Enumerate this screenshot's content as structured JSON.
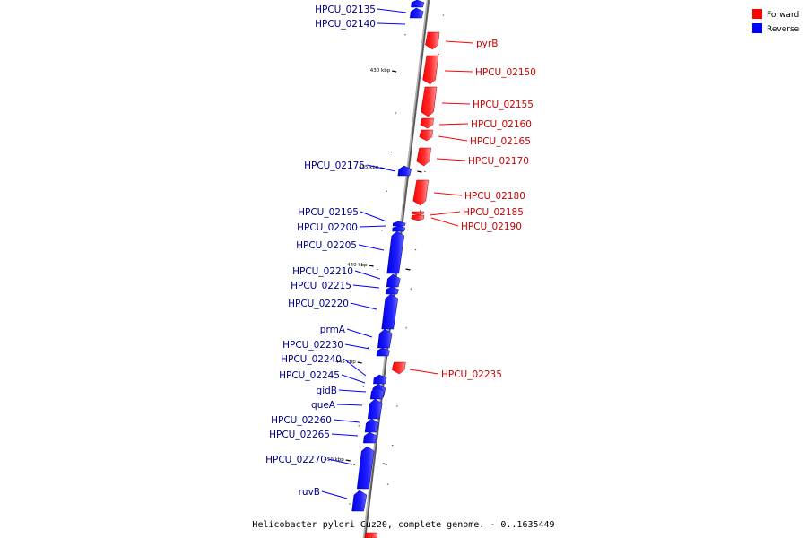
{
  "caption": "Helicobacter pylori Cuz20, complete genome. - 0..1635449",
  "legend": [
    {
      "label": "Forward",
      "color": "#ff0000"
    },
    {
      "label": "Reverse",
      "color": "#0000ff"
    }
  ],
  "colors": {
    "forward": "#ff0000",
    "reverse": "#0000ff",
    "backbone": "#8c8c8c"
  },
  "scale_ticks": [
    "430 kbp",
    "435 kbp",
    "440 kbp",
    "445 kbp",
    "450 kbp"
  ],
  "genes": [
    {
      "name": "HPCU_02135",
      "strand": "reverse"
    },
    {
      "name": "HPCU_02140",
      "strand": "reverse"
    },
    {
      "name": "pyrB",
      "strand": "forward"
    },
    {
      "name": "HPCU_02150",
      "strand": "forward"
    },
    {
      "name": "HPCU_02155",
      "strand": "forward"
    },
    {
      "name": "HPCU_02160",
      "strand": "forward"
    },
    {
      "name": "HPCU_02165",
      "strand": "forward"
    },
    {
      "name": "HPCU_02170",
      "strand": "forward"
    },
    {
      "name": "HPCU_02175",
      "strand": "reverse"
    },
    {
      "name": "HPCU_02180",
      "strand": "forward"
    },
    {
      "name": "HPCU_02185",
      "strand": "forward"
    },
    {
      "name": "HPCU_02190",
      "strand": "forward"
    },
    {
      "name": "HPCU_02195",
      "strand": "reverse"
    },
    {
      "name": "HPCU_02200",
      "strand": "reverse"
    },
    {
      "name": "HPCU_02205",
      "strand": "reverse"
    },
    {
      "name": "HPCU_02210",
      "strand": "reverse"
    },
    {
      "name": "HPCU_02215",
      "strand": "reverse"
    },
    {
      "name": "HPCU_02220",
      "strand": "reverse"
    },
    {
      "name": "prmA",
      "strand": "reverse"
    },
    {
      "name": "HPCU_02230",
      "strand": "reverse"
    },
    {
      "name": "HPCU_02235",
      "strand": "forward"
    },
    {
      "name": "HPCU_02240",
      "strand": "reverse"
    },
    {
      "name": "HPCU_02245",
      "strand": "reverse"
    },
    {
      "name": "gidB",
      "strand": "reverse"
    },
    {
      "name": "queA",
      "strand": "reverse"
    },
    {
      "name": "HPCU_02260",
      "strand": "reverse"
    },
    {
      "name": "HPCU_02265",
      "strand": "reverse"
    },
    {
      "name": "HPCU_02270",
      "strand": "reverse"
    },
    {
      "name": "ruvB",
      "strand": "reverse"
    }
  ]
}
